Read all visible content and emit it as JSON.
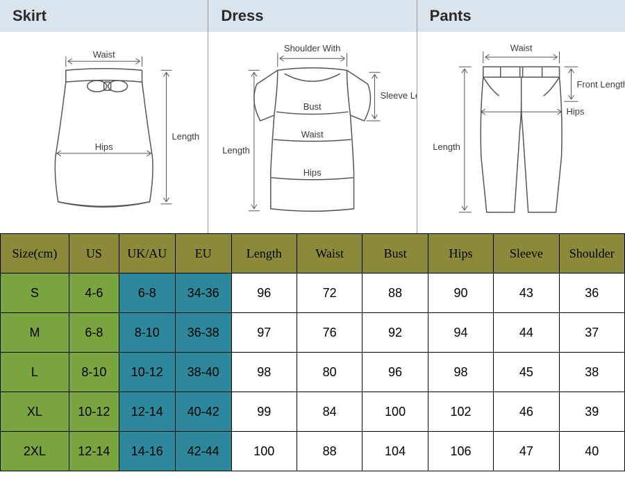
{
  "colors": {
    "header_bg": "#d9e4ed",
    "olive": "#8a8a3a",
    "olive_light": "#7aa43f",
    "teal": "#2d889b",
    "white": "#ffffff",
    "border": "#000000",
    "text": "#2a2a2a"
  },
  "panels": [
    {
      "title": "Skirt"
    },
    {
      "title": "Dress"
    },
    {
      "title": "Pants"
    }
  ],
  "diagram_labels": {
    "skirt": {
      "waist": "Waist",
      "hips": "Hips",
      "length": "Length"
    },
    "dress": {
      "shoulder": "Shoulder With",
      "bust": "Bust",
      "waist": "Waist",
      "hips": "Hips",
      "sleeve": "Sleeve Length",
      "length": "Length"
    },
    "pants": {
      "waist": "Waist",
      "hips": "Hips",
      "length": "Length",
      "front": "Front Length"
    }
  },
  "table": {
    "columns": [
      "Size(cm)",
      "US",
      "UK/AU",
      "EU",
      "Length",
      "Waist",
      "Bust",
      "Hips",
      "Sleeve",
      "Shoulder"
    ],
    "header_bg": "#8a8a3a",
    "header_color": "#000000",
    "col_widths_pct": [
      11,
      8,
      9,
      9,
      10.5,
      10.5,
      10.5,
      10.5,
      10.5,
      10.5
    ],
    "cell_styles": {
      "size_col_bg": "#7aa43f",
      "us_col_bg": "#7aa43f",
      "ukau_col_bg": "#2d889b",
      "eu_col_bg": "#2d889b",
      "data_bg": "#ffffff"
    },
    "rows": [
      [
        "S",
        "4-6",
        "6-8",
        "34-36",
        "96",
        "72",
        "88",
        "90",
        "43",
        "36"
      ],
      [
        "M",
        "6-8",
        "8-10",
        "36-38",
        "97",
        "76",
        "92",
        "94",
        "44",
        "37"
      ],
      [
        "L",
        "8-10",
        "10-12",
        "38-40",
        "98",
        "80",
        "96",
        "98",
        "45",
        "38"
      ],
      [
        "XL",
        "10-12",
        "12-14",
        "40-42",
        "99",
        "84",
        "100",
        "102",
        "46",
        "39"
      ],
      [
        "2XL",
        "12-14",
        "14-16",
        "42-44",
        "100",
        "88",
        "104",
        "106",
        "47",
        "40"
      ]
    ]
  }
}
